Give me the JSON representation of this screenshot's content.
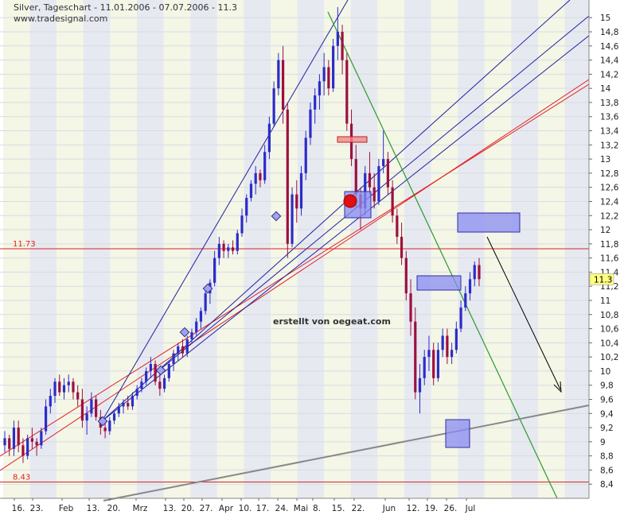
{
  "header": {
    "title": "Silver, Tageschart - 11.01.2006 - 07.07.2006 - 11.3",
    "source": "www.tradesignal.com"
  },
  "annotation_text": "erstellt von oegeat.com",
  "chart_data": {
    "type": "candlestick",
    "title": "Silver, Tageschart - 11.01.2006 - 07.07.2006 - 11.3",
    "ylim": [
      8.2,
      15.25
    ],
    "y_ticks": [
      8.4,
      8.6,
      8.8,
      9,
      9.2,
      9.4,
      9.6,
      9.8,
      10,
      10.2,
      10.4,
      10.6,
      10.8,
      11,
      11.2,
      11.4,
      11.6,
      11.8,
      12,
      12.2,
      12.4,
      12.6,
      12.8,
      13,
      13.2,
      13.4,
      13.6,
      13.8,
      14,
      14.2,
      14.4,
      14.6,
      14.8,
      15
    ],
    "x_ticks": [
      "16.",
      "23.",
      "Feb",
      "13.",
      "20.",
      "Mrz",
      "13.",
      "20.",
      "27.",
      "Apr",
      "10.",
      "17.",
      "24.",
      "Mai",
      "8.",
      "15.",
      "22.",
      "Jun",
      "12.",
      "19.",
      "26.",
      "Jul"
    ],
    "last_price": 11.3,
    "levels": [
      {
        "label": "11.73",
        "value": 11.73,
        "color": "#e02020"
      },
      {
        "label": "8.43",
        "value": 8.43,
        "color": "#e02020"
      }
    ],
    "candles": [
      [
        8.95,
        9.15,
        8.85,
        9.05
      ],
      [
        9.05,
        9.1,
        8.8,
        8.9
      ],
      [
        8.9,
        9.3,
        8.8,
        9.2
      ],
      [
        9.2,
        9.3,
        8.85,
        8.95
      ],
      [
        8.95,
        9.05,
        8.7,
        8.8
      ],
      [
        8.8,
        9.1,
        8.75,
        9.05
      ],
      [
        9.05,
        9.2,
        8.9,
        9.0
      ],
      [
        9.0,
        9.05,
        8.8,
        8.95
      ],
      [
        8.95,
        9.2,
        8.9,
        9.15
      ],
      [
        9.15,
        9.6,
        9.1,
        9.5
      ],
      [
        9.5,
        9.75,
        9.4,
        9.65
      ],
      [
        9.65,
        9.9,
        9.55,
        9.85
      ],
      [
        9.85,
        9.95,
        9.65,
        9.7
      ],
      [
        9.7,
        9.9,
        9.6,
        9.8
      ],
      [
        9.8,
        9.95,
        9.7,
        9.85
      ],
      [
        9.85,
        9.9,
        9.6,
        9.7
      ],
      [
        9.7,
        9.8,
        9.5,
        9.6
      ],
      [
        9.6,
        9.75,
        9.2,
        9.3
      ],
      [
        9.3,
        9.5,
        9.1,
        9.4
      ],
      [
        9.4,
        9.7,
        9.35,
        9.6
      ],
      [
        9.6,
        9.65,
        9.3,
        9.35
      ],
      [
        9.35,
        9.45,
        9.1,
        9.2
      ],
      [
        9.2,
        9.3,
        9.05,
        9.15
      ],
      [
        9.15,
        9.35,
        9.1,
        9.3
      ],
      [
        9.3,
        9.45,
        9.25,
        9.4
      ],
      [
        9.4,
        9.55,
        9.35,
        9.5
      ],
      [
        9.5,
        9.6,
        9.4,
        9.55
      ],
      [
        9.55,
        9.65,
        9.45,
        9.5
      ],
      [
        9.5,
        9.7,
        9.45,
        9.65
      ],
      [
        9.65,
        9.8,
        9.6,
        9.75
      ],
      [
        9.75,
        9.9,
        9.7,
        9.85
      ],
      [
        9.85,
        10.05,
        9.8,
        10.0
      ],
      [
        10.0,
        10.2,
        9.9,
        10.1
      ],
      [
        10.1,
        10.15,
        9.8,
        9.85
      ],
      [
        9.85,
        10.0,
        9.65,
        9.75
      ],
      [
        9.75,
        9.95,
        9.7,
        9.9
      ],
      [
        9.9,
        10.15,
        9.85,
        10.1
      ],
      [
        10.1,
        10.3,
        10.0,
        10.25
      ],
      [
        10.25,
        10.4,
        10.15,
        10.35
      ],
      [
        10.35,
        10.45,
        10.2,
        10.25
      ],
      [
        10.25,
        10.5,
        10.2,
        10.45
      ],
      [
        10.45,
        10.6,
        10.4,
        10.55
      ],
      [
        10.55,
        10.75,
        10.5,
        10.7
      ],
      [
        10.7,
        10.9,
        10.6,
        10.85
      ],
      [
        10.85,
        11.2,
        10.8,
        11.1
      ],
      [
        11.1,
        11.3,
        10.95,
        11.25
      ],
      [
        11.25,
        11.7,
        11.2,
        11.6
      ],
      [
        11.6,
        11.9,
        11.5,
        11.8
      ],
      [
        11.8,
        11.85,
        11.6,
        11.7
      ],
      [
        11.7,
        11.8,
        11.6,
        11.75
      ],
      [
        11.75,
        11.85,
        11.65,
        11.7
      ],
      [
        11.7,
        12.0,
        11.65,
        11.95
      ],
      [
        11.95,
        12.3,
        11.9,
        12.2
      ],
      [
        12.2,
        12.5,
        12.1,
        12.45
      ],
      [
        12.45,
        12.7,
        12.4,
        12.65
      ],
      [
        12.65,
        12.9,
        12.5,
        12.8
      ],
      [
        12.8,
        12.85,
        12.6,
        12.7
      ],
      [
        12.7,
        13.2,
        12.65,
        13.1
      ],
      [
        13.1,
        13.6,
        13.0,
        13.5
      ],
      [
        13.5,
        14.1,
        13.45,
        14.0
      ],
      [
        14.0,
        14.5,
        13.9,
        14.4
      ],
      [
        14.4,
        14.6,
        13.5,
        13.7
      ],
      [
        13.7,
        13.8,
        11.6,
        11.8
      ],
      [
        11.8,
        12.6,
        11.75,
        12.5
      ],
      [
        12.5,
        12.7,
        12.1,
        12.3
      ],
      [
        12.3,
        12.9,
        12.2,
        12.8
      ],
      [
        12.8,
        13.4,
        12.7,
        13.3
      ],
      [
        13.3,
        13.8,
        13.2,
        13.7
      ],
      [
        13.7,
        14.0,
        13.5,
        13.9
      ],
      [
        13.9,
        14.2,
        13.7,
        14.1
      ],
      [
        14.1,
        14.5,
        13.9,
        14.3
      ],
      [
        14.3,
        14.4,
        13.9,
        14.0
      ],
      [
        14.0,
        14.7,
        13.95,
        14.6
      ],
      [
        14.6,
        15.15,
        14.4,
        14.8
      ],
      [
        14.8,
        14.9,
        14.2,
        14.4
      ],
      [
        14.4,
        14.5,
        13.4,
        13.5
      ],
      [
        13.5,
        13.7,
        12.9,
        13.0
      ],
      [
        13.0,
        13.2,
        12.3,
        12.5
      ],
      [
        12.5,
        12.6,
        12.0,
        12.3
      ],
      [
        12.3,
        12.9,
        12.2,
        12.8
      ],
      [
        12.8,
        13.1,
        12.5,
        12.6
      ],
      [
        12.6,
        12.8,
        12.3,
        12.4
      ],
      [
        12.4,
        13.0,
        12.35,
        12.9
      ],
      [
        12.9,
        13.4,
        12.8,
        13.0
      ],
      [
        13.0,
        13.1,
        12.5,
        12.6
      ],
      [
        12.6,
        12.7,
        12.1,
        12.2
      ],
      [
        12.2,
        12.3,
        11.8,
        11.9
      ],
      [
        11.9,
        12.1,
        11.5,
        11.6
      ],
      [
        11.6,
        11.7,
        11.0,
        11.1
      ],
      [
        11.1,
        11.3,
        10.5,
        10.7
      ],
      [
        10.7,
        10.9,
        9.6,
        9.7
      ],
      [
        9.7,
        10.1,
        9.4,
        9.9
      ],
      [
        9.9,
        10.3,
        9.8,
        10.2
      ],
      [
        10.2,
        10.5,
        10.0,
        10.3
      ],
      [
        10.3,
        10.4,
        9.8,
        9.9
      ],
      [
        9.9,
        10.4,
        9.85,
        10.3
      ],
      [
        10.3,
        10.6,
        10.2,
        10.5
      ],
      [
        10.5,
        10.6,
        10.1,
        10.2
      ],
      [
        10.2,
        10.4,
        10.1,
        10.3
      ],
      [
        10.3,
        10.7,
        10.25,
        10.6
      ],
      [
        10.6,
        11.0,
        10.55,
        10.9
      ],
      [
        10.9,
        11.2,
        10.85,
        11.1
      ],
      [
        11.1,
        11.4,
        11.0,
        11.3
      ],
      [
        11.3,
        11.55,
        11.2,
        11.5
      ],
      [
        11.5,
        11.6,
        11.2,
        11.3
      ]
    ]
  }
}
